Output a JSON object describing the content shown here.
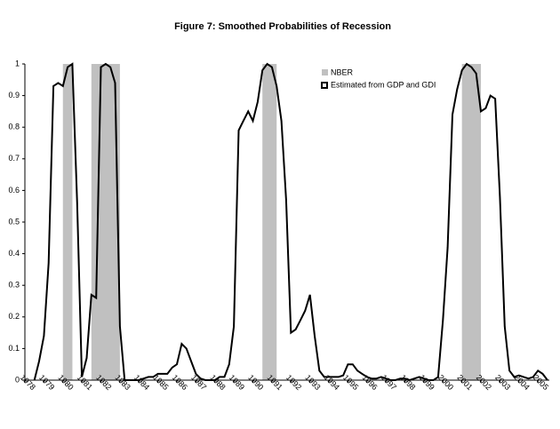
{
  "chart_data": {
    "type": "line",
    "title": "Figure 7: Smoothed Probabilities of Recession",
    "x": [
      1978.5,
      1978.75,
      1979,
      1979.25,
      1979.5,
      1979.75,
      1980,
      1980.25,
      1980.5,
      1980.75,
      1981,
      1981.25,
      1981.5,
      1981.75,
      1982,
      1982.25,
      1982.5,
      1982.75,
      1983,
      1983.25,
      1983.5,
      1983.75,
      1984,
      1984.25,
      1984.5,
      1984.75,
      1985,
      1985.25,
      1985.5,
      1985.75,
      1986,
      1986.25,
      1986.5,
      1986.75,
      1987,
      1987.25,
      1987.5,
      1987.75,
      1988,
      1988.25,
      1988.5,
      1988.75,
      1989,
      1989.25,
      1989.5,
      1989.75,
      1990,
      1990.25,
      1990.5,
      1990.75,
      1991,
      1991.25,
      1991.5,
      1991.75,
      1992,
      1992.25,
      1992.5,
      1992.75,
      1993,
      1993.25,
      1993.5,
      1993.75,
      1994,
      1994.25,
      1994.5,
      1994.75,
      1995,
      1995.25,
      1995.5,
      1995.75,
      1996,
      1996.25,
      1996.5,
      1996.75,
      1997,
      1997.25,
      1997.5,
      1997.75,
      1998,
      1998.25,
      1998.5,
      1998.75,
      1999,
      1999.25,
      1999.5,
      1999.75,
      2000,
      2000.25,
      2000.5,
      2000.75,
      2001,
      2001.25,
      2001.5,
      2001.75,
      2002,
      2002.25,
      2002.5,
      2002.75,
      2003,
      2003.25,
      2003.5,
      2003.75,
      2004,
      2004.25,
      2004.5,
      2004.75,
      2005,
      2005.25,
      2005.5
    ],
    "series": [
      {
        "name": "Estimated from GDP and GDI",
        "color": "#000000",
        "values": [
          0,
          0.06,
          0.14,
          0.37,
          0.93,
          0.94,
          0.93,
          0.99,
          1,
          0.56,
          0.01,
          0.07,
          0.27,
          0.26,
          0.99,
          1,
          0.99,
          0.94,
          0.17,
          0,
          0,
          0,
          0,
          0.005,
          0.01,
          0.01,
          0.02,
          0.02,
          0.02,
          0.04,
          0.05,
          0.115,
          0.1,
          0.06,
          0.02,
          0.005,
          0,
          0,
          0,
          0.01,
          0.01,
          0.05,
          0.17,
          0.79,
          0.82,
          0.85,
          0.82,
          0.88,
          0.98,
          1,
          0.99,
          0.93,
          0.82,
          0.57,
          0.15,
          0.16,
          0.19,
          0.22,
          0.27,
          0.14,
          0.03,
          0.01,
          0.01,
          0.01,
          0.01,
          0.015,
          0.05,
          0.05,
          0.03,
          0.02,
          0.01,
          0.005,
          0.005,
          0.01,
          0.005,
          0,
          0,
          0.005,
          0.005,
          0,
          0.005,
          0.01,
          0.005,
          0,
          0,
          0.01,
          0.19,
          0.42,
          0.84,
          0.92,
          0.98,
          1,
          0.99,
          0.97,
          0.85,
          0.86,
          0.9,
          0.89,
          0.58,
          0.17,
          0.03,
          0.01,
          0.015,
          0.01,
          0.005,
          0.01,
          0.03,
          0.02,
          0
        ]
      }
    ],
    "shaded": {
      "name": "NBER",
      "color": "#c0c0c0",
      "periods": [
        [
          1980,
          1980.5
        ],
        [
          1981.5,
          1983
        ],
        [
          1990.5,
          1991.25
        ],
        [
          2001,
          2002
        ]
      ]
    },
    "xlim": [
      1978,
      2005.6
    ],
    "xticks": [
      1978,
      1979,
      1980,
      1981,
      1982,
      1983,
      1984,
      1985,
      1986,
      1987,
      1988,
      1989,
      1990,
      1991,
      1992,
      1993,
      1994,
      1995,
      1996,
      1997,
      1998,
      1999,
      2000,
      2001,
      2002,
      2003,
      2004,
      2005
    ],
    "ylim": [
      0,
      1
    ],
    "yticks": [
      0,
      0.1,
      0.2,
      0.3,
      0.4,
      0.5,
      0.6,
      0.7,
      0.8,
      0.9,
      1
    ]
  }
}
